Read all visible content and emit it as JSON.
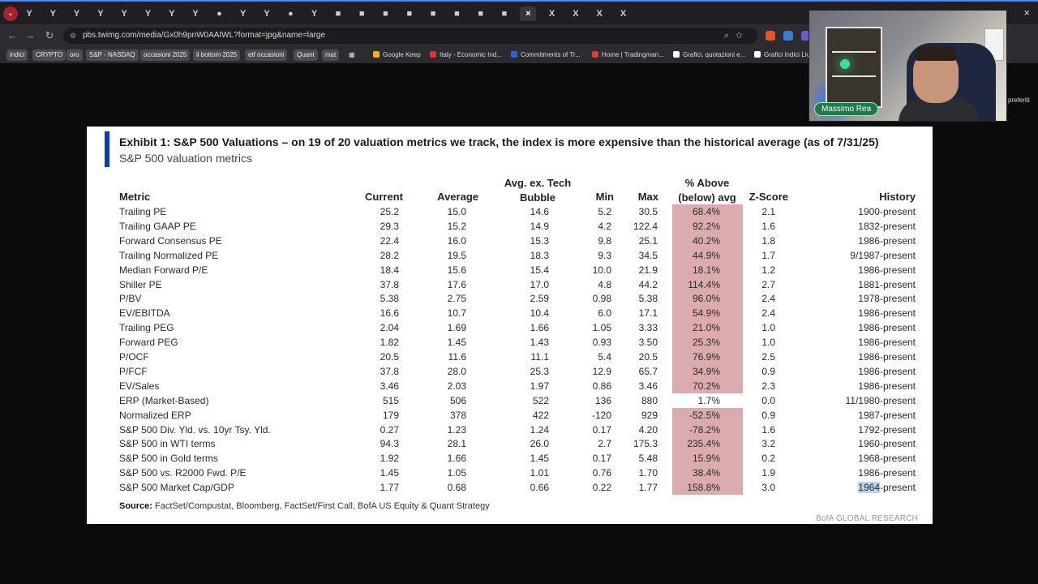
{
  "browser": {
    "url": "pbs.twimg.com/media/Gx0h9pnW0AAIWL?format=jpg&name=large",
    "tabs": [
      "Y",
      "Y",
      "Y",
      "Y",
      "Y",
      "Y",
      "Y",
      "Y",
      "●",
      "Y",
      "Y",
      "●",
      "Y",
      "■",
      "■",
      "■",
      "■",
      "■",
      "■",
      "■",
      "■",
      "×",
      "X",
      "X",
      "X",
      "X"
    ],
    "window_close": "×",
    "bookmarks": [
      "indici",
      "CRYPTO",
      "oro",
      "S&P - NASDAQ",
      "occasioni 2025",
      "il bottom 2025",
      "etf occasioni",
      "Quant",
      "mat"
    ],
    "bookmark_sites": [
      "Google Keep",
      "Italy - Economic Ind...",
      "Commitments of Tr...",
      "Home | Tradingman...",
      "Grafici, quotazioni e...",
      "Grafici Indici Live"
    ],
    "bookmarks_right": "preferiti"
  },
  "webcam": {
    "name": "Massimo Rea"
  },
  "exhibit": {
    "title": "Exhibit 1: S&P 500 Valuations – on 19 of 20 valuation metrics we track, the index is more expensive than the historical average (as of 7/31/25)",
    "subtitle": "S&P 500 valuation metrics",
    "headers": {
      "metric": "Metric",
      "current": "Current",
      "average": "Average",
      "avg_ex_tech": "Avg. ex. Tech Bubble",
      "min": "Min",
      "max": "Max",
      "pct_above": "% Above (below) avg",
      "zscore": "Z-Score",
      "history": "History"
    },
    "rows": [
      {
        "metric": "Trailing PE",
        "current": "25.2",
        "average": "15.0",
        "avg_ex": "14.6",
        "min": "5.2",
        "max": "30.5",
        "pct": "68.4%",
        "z": "2.1",
        "history": "1900-present"
      },
      {
        "metric": "Trailing GAAP PE",
        "current": "29.3",
        "average": "15.2",
        "avg_ex": "14.9",
        "min": "4.2",
        "max": "122.4",
        "pct": "92.2%",
        "z": "1.6",
        "history": "1832-present"
      },
      {
        "metric": "Forward Consensus PE",
        "current": "22.4",
        "average": "16.0",
        "avg_ex": "15.3",
        "min": "9.8",
        "max": "25.1",
        "pct": "40.2%",
        "z": "1.8",
        "history": "1986-present"
      },
      {
        "metric": "Trailing Normalized PE",
        "current": "28.2",
        "average": "19.5",
        "avg_ex": "18.3",
        "min": "9.3",
        "max": "34.5",
        "pct": "44.9%",
        "z": "1.7",
        "history": "9/1987-present"
      },
      {
        "metric": "Median Forward P/E",
        "current": "18.4",
        "average": "15.6",
        "avg_ex": "15.4",
        "min": "10.0",
        "max": "21.9",
        "pct": "18.1%",
        "z": "1.2",
        "history": "1986-present"
      },
      {
        "metric": "Shiller PE",
        "current": "37.8",
        "average": "17.6",
        "avg_ex": "17.0",
        "min": "4.8",
        "max": "44.2",
        "pct": "114.4%",
        "z": "2.7",
        "history": "1881-present"
      },
      {
        "metric": "P/BV",
        "current": "5.38",
        "average": "2.75",
        "avg_ex": "2.59",
        "min": "0.98",
        "max": "5.38",
        "pct": "96.0%",
        "z": "2.4",
        "history": "1978-present"
      },
      {
        "metric": "EV/EBITDA",
        "current": "16.6",
        "average": "10.7",
        "avg_ex": "10.4",
        "min": "6.0",
        "max": "17.1",
        "pct": "54.9%",
        "z": "2.4",
        "history": "1986-present"
      },
      {
        "metric": "Trailing PEG",
        "current": "2.04",
        "average": "1.69",
        "avg_ex": "1.66",
        "min": "1.05",
        "max": "3.33",
        "pct": "21.0%",
        "z": "1.0",
        "history": "1986-present"
      },
      {
        "metric": "Forward PEG",
        "current": "1.82",
        "average": "1.45",
        "avg_ex": "1.43",
        "min": "0.93",
        "max": "3.50",
        "pct": "25.3%",
        "z": "1.0",
        "history": "1986-present"
      },
      {
        "metric": "P/OCF",
        "current": "20.5",
        "average": "11.6",
        "avg_ex": "11.1",
        "min": "5.4",
        "max": "20.5",
        "pct": "76.9%",
        "z": "2.5",
        "history": "1986-present"
      },
      {
        "metric": "P/FCF",
        "current": "37.8",
        "average": "28.0",
        "avg_ex": "25.3",
        "min": "12.9",
        "max": "65.7",
        "pct": "34.9%",
        "z": "0.9",
        "history": "1986-present"
      },
      {
        "metric": "EV/Sales",
        "current": "3.46",
        "average": "2.03",
        "avg_ex": "1.97",
        "min": "0.86",
        "max": "3.46",
        "pct": "70.2%",
        "z": "2.3",
        "history": "1986-present"
      },
      {
        "metric": "ERP (Market-Based)",
        "current": "515",
        "average": "506",
        "avg_ex": "522",
        "min": "136",
        "max": "880",
        "pct": "1.7%",
        "z": "0.0",
        "history": "11/1980-present"
      },
      {
        "metric": "Normalized ERP",
        "current": "179",
        "average": "378",
        "avg_ex": "422",
        "min": "-120",
        "max": "929",
        "pct": "-52.5%",
        "z": "0.9",
        "history": "1987-present"
      },
      {
        "metric": "S&P 500 Div. Yld. vs. 10yr Tsy. Yld.",
        "current": "0.27",
        "average": "1.23",
        "avg_ex": "1.24",
        "min": "0.17",
        "max": "4.20",
        "pct": "-78.2%",
        "z": "1.6",
        "history": "1792-present"
      },
      {
        "metric": "S&P 500 in WTI terms",
        "current": "94.3",
        "average": "28.1",
        "avg_ex": "26.0",
        "min": "2.7",
        "max": "175.3",
        "pct": "235.4%",
        "z": "3.2",
        "history": "1960-present"
      },
      {
        "metric": "S&P 500 in Gold terms",
        "current": "1.92",
        "average": "1.66",
        "avg_ex": "1.45",
        "min": "0.17",
        "max": "5.48",
        "pct": "15.9%",
        "z": "0.2",
        "history": "1968-present"
      },
      {
        "metric": "S&P 500 vs. R2000 Fwd. P/E",
        "current": "1.45",
        "average": "1.05",
        "avg_ex": "1.01",
        "min": "0.76",
        "max": "1.70",
        "pct": "38.4%",
        "z": "1.9",
        "history": "1986-present"
      },
      {
        "metric": "S&P 500 Market Cap/GDP",
        "current": "1.77",
        "average": "0.68",
        "avg_ex": "0.66",
        "min": "0.22",
        "max": "1.77",
        "pct": "158.8%",
        "z": "3.0",
        "history_hl": "1964",
        "history_rest": "-present"
      }
    ],
    "source_label": "Source:",
    "source_text": "FactSet/Compustat, Bloomberg, FactSet/First Call, BofA US Equity & Quant Strategy",
    "brand": "BofA GLOBAL RESEARCH",
    "colors": {
      "pct_highlight": "#dcabaf",
      "accent_bar": "#0a3fa8"
    }
  }
}
